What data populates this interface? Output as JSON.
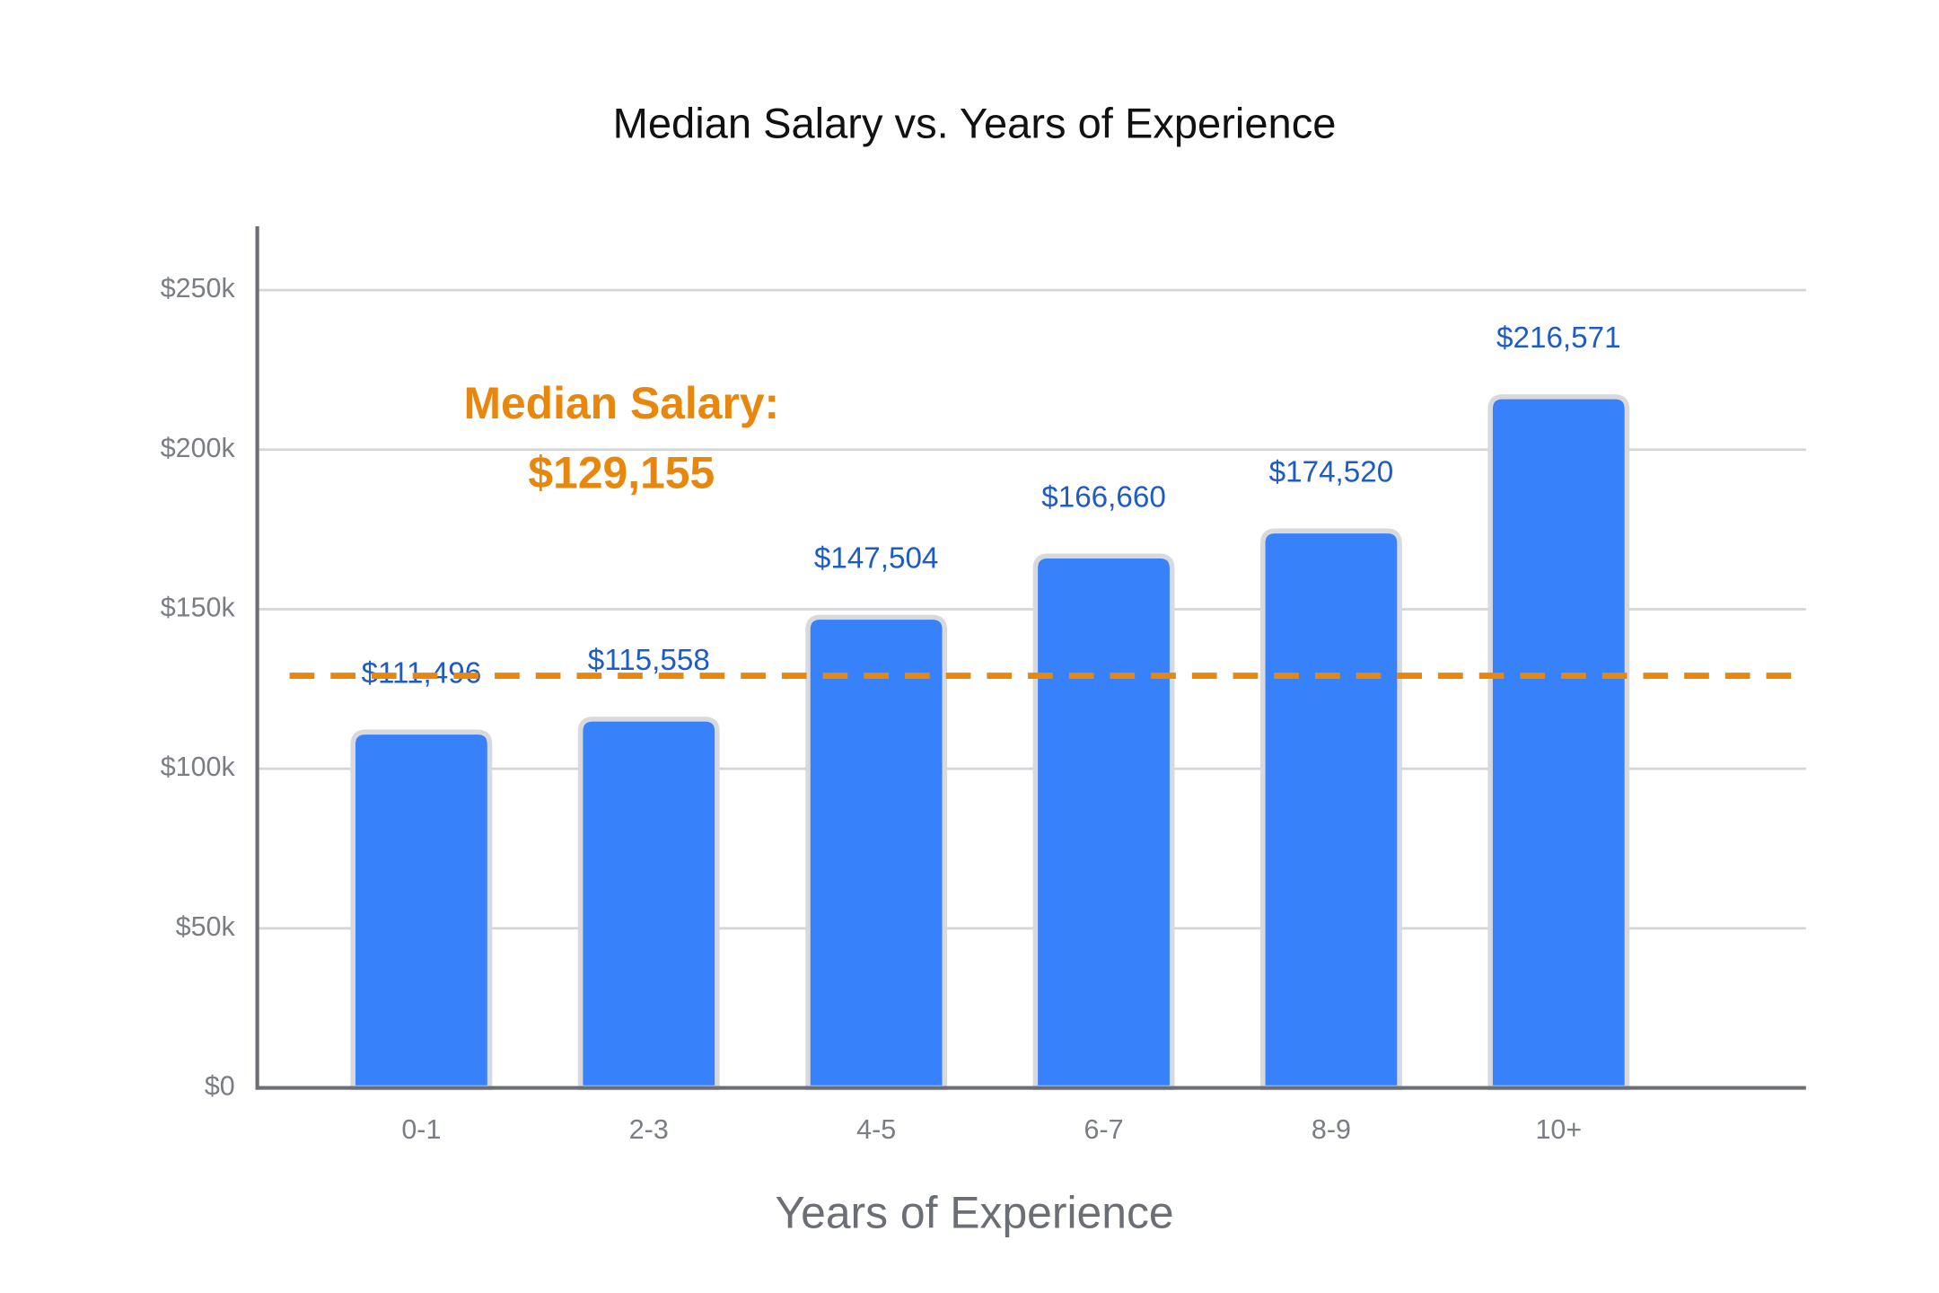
{
  "chart_data": {
    "type": "bar",
    "title": "Median Salary vs. Years of Experience",
    "x_label": "Years of Experience",
    "categories": [
      "0-1",
      "2-3",
      "4-5",
      "6-7",
      "8-9",
      "10+"
    ],
    "values": [
      111496,
      115558,
      147504,
      166660,
      174520,
      216571
    ],
    "value_labels": [
      "$111,496",
      "$115,558",
      "$147,504",
      "$166,660",
      "$174,520",
      "$216,571"
    ],
    "color": "#3781fb",
    "ylim": [
      0,
      270000
    ],
    "yticks": [
      {
        "value": 0,
        "label": "$0"
      },
      {
        "value": 50000,
        "label": "$50k"
      },
      {
        "value": 100000,
        "label": "$100k"
      },
      {
        "value": 150000,
        "label": "$150k"
      },
      {
        "value": 200000,
        "label": "$200k"
      },
      {
        "value": 250000,
        "label": "$250k"
      }
    ],
    "grid": true,
    "reference_line": {
      "value": 129155,
      "title": "Median Salary:",
      "label": "$129,155",
      "color": "#e8870e"
    }
  }
}
